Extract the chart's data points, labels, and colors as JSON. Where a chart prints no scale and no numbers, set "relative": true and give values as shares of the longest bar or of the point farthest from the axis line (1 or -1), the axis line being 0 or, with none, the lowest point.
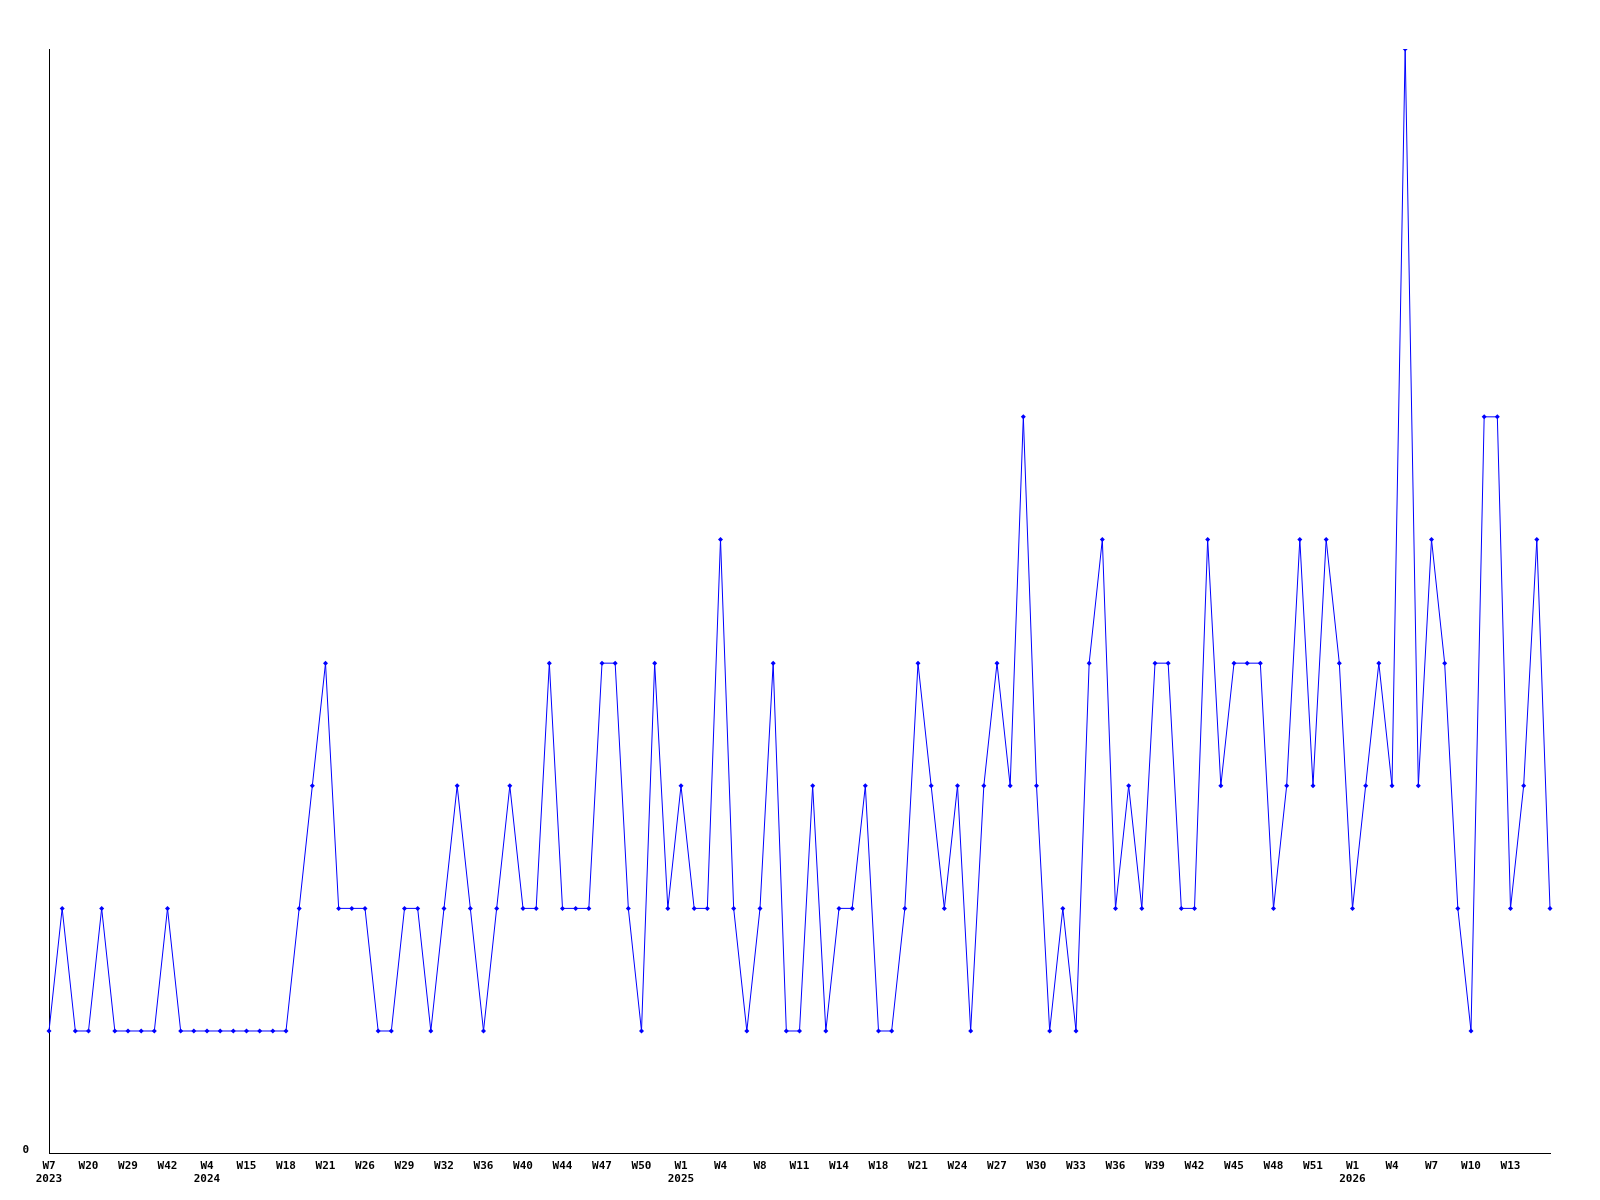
{
  "chart_data": {
    "type": "line",
    "relative": true,
    "categories": [
      "W7\n2023",
      null,
      null,
      "W20",
      null,
      null,
      "W29",
      null,
      null,
      "W42",
      null,
      null,
      "W4\n2024",
      null,
      null,
      "W15",
      null,
      null,
      "W18",
      null,
      null,
      "W21",
      null,
      null,
      "W26",
      null,
      null,
      "W29",
      null,
      null,
      "W32",
      null,
      null,
      "W36",
      null,
      null,
      "W40",
      null,
      null,
      "W44",
      null,
      null,
      "W47",
      null,
      null,
      "W50",
      null,
      null,
      "W1\n2025",
      null,
      null,
      "W4",
      null,
      null,
      "W8",
      null,
      null,
      "W11",
      null,
      null,
      "W14",
      null,
      null,
      "W18",
      null,
      null,
      "W21",
      null,
      null,
      "W24",
      null,
      null,
      "W27",
      null,
      null,
      "W30",
      null,
      null,
      "W33",
      null,
      null,
      "W36",
      null,
      null,
      "W39",
      null,
      null,
      "W42",
      null,
      null,
      "W45",
      null,
      null,
      "W48",
      null,
      null,
      "W51",
      null,
      null,
      "W1\n2026",
      null,
      null,
      "W4",
      null,
      null,
      "W7",
      null,
      null,
      "W10",
      null,
      null,
      "W13",
      null,
      null,
      null
    ],
    "series": [
      {
        "color": "#0000ff",
        "values": [
          0.111,
          0.222,
          0.111,
          0.111,
          0.222,
          0.111,
          0.111,
          0.111,
          0.111,
          0.222,
          0.111,
          0.111,
          0.111,
          0.111,
          0.111,
          0.111,
          0.111,
          0.111,
          0.111,
          0.222,
          0.333,
          0.444,
          0.222,
          0.222,
          0.222,
          0.111,
          0.111,
          0.222,
          0.222,
          0.111,
          0.222,
          0.333,
          0.222,
          0.111,
          0.222,
          0.333,
          0.222,
          0.222,
          0.444,
          0.222,
          0.222,
          0.222,
          0.444,
          0.444,
          0.222,
          0.111,
          0.444,
          0.222,
          0.333,
          0.222,
          0.222,
          0.556,
          0.222,
          0.111,
          0.222,
          0.444,
          0.111,
          0.111,
          0.333,
          0.111,
          0.222,
          0.222,
          0.333,
          0.111,
          0.111,
          0.222,
          0.444,
          0.333,
          0.222,
          0.333,
          0.111,
          0.333,
          0.444,
          0.333,
          0.667,
          0.333,
          0.111,
          0.222,
          0.111,
          0.444,
          0.556,
          0.222,
          0.333,
          0.222,
          0.444,
          0.444,
          0.222,
          0.222,
          0.556,
          0.333,
          0.444,
          0.444,
          0.444,
          0.222,
          0.333,
          0.556,
          0.333,
          0.556,
          0.444,
          0.222,
          0.333,
          0.444,
          0.333,
          1,
          0.333,
          0.556,
          0.444,
          0.222,
          0.111,
          0.667,
          0.667,
          0.222,
          0.333,
          0.556,
          0.222
        ]
      }
    ],
    "annotations": [
      "0"
    ],
    "marker": "diamond",
    "line_style": "solid",
    "grid": false,
    "legend": false
  }
}
